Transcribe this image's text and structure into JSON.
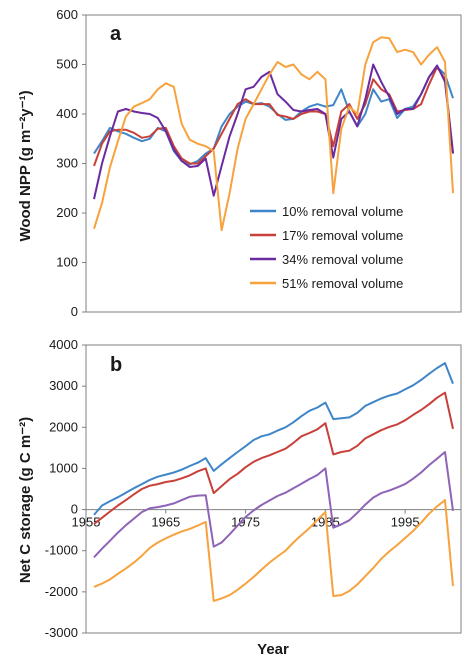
{
  "colors": {
    "s10": "#3f86c8",
    "s17": "#c8403a",
    "s34": "#6a2aa0",
    "s51": "#f7a23c",
    "s34b": "#8e63b8",
    "axis": "#808080"
  },
  "chart_data": [
    {
      "type": "line",
      "panel_label": "a",
      "ylabel": "Wood NPP (g m⁻²y⁻¹)",
      "xlim": [
        1955,
        2002
      ],
      "ylim": [
        0,
        600
      ],
      "yticks": [
        "0",
        "100",
        "200",
        "300",
        "400",
        "500",
        "600"
      ],
      "legend_position": "center-right",
      "x": [
        1956,
        1957,
        1958,
        1959,
        1960,
        1961,
        1962,
        1963,
        1964,
        1965,
        1966,
        1967,
        1968,
        1969,
        1970,
        1971,
        1972,
        1973,
        1974,
        1975,
        1976,
        1977,
        1978,
        1979,
        1980,
        1981,
        1982,
        1983,
        1984,
        1985,
        1986,
        1987,
        1988,
        1989,
        1990,
        1991,
        1992,
        1993,
        1994,
        1995,
        1996,
        1997,
        1998,
        1999,
        2000,
        2001
      ],
      "series": [
        {
          "name": "10% removal volume",
          "color_key": "s10",
          "values": [
            320,
            345,
            372,
            365,
            360,
            352,
            345,
            350,
            372,
            365,
            325,
            305,
            298,
            305,
            320,
            330,
            375,
            400,
            415,
            425,
            420,
            422,
            415,
            400,
            388,
            390,
            405,
            415,
            420,
            415,
            418,
            450,
            405,
            375,
            400,
            450,
            425,
            430,
            392,
            410,
            415,
            440,
            475,
            495,
            480,
            432
          ]
        },
        {
          "name": "17% removal volume",
          "color_key": "s17",
          "values": [
            295,
            340,
            365,
            368,
            368,
            362,
            352,
            355,
            370,
            372,
            335,
            310,
            300,
            300,
            315,
            330,
            360,
            390,
            420,
            430,
            420,
            420,
            420,
            398,
            395,
            390,
            400,
            405,
            405,
            400,
            335,
            405,
            420,
            390,
            420,
            470,
            450,
            440,
            405,
            408,
            410,
            420,
            460,
            495,
            470,
            322
          ]
        },
        {
          "name": "34% removal volume",
          "color_key": "s34",
          "values": [
            228,
            300,
            355,
            405,
            410,
            405,
            402,
            400,
            392,
            365,
            328,
            305,
            293,
            295,
            310,
            235,
            295,
            355,
            400,
            450,
            455,
            475,
            485,
            440,
            425,
            408,
            405,
            408,
            410,
            400,
            312,
            390,
            405,
            375,
            430,
            500,
            465,
            435,
            400,
            410,
            410,
            440,
            475,
            498,
            465,
            320
          ]
        },
        {
          "name": "51% removal volume",
          "color_key": "s51",
          "values": [
            168,
            220,
            292,
            345,
            395,
            415,
            422,
            430,
            450,
            462,
            455,
            380,
            348,
            340,
            335,
            325,
            165,
            240,
            330,
            390,
            420,
            450,
            480,
            505,
            495,
            500,
            480,
            470,
            485,
            470,
            240,
            370,
            415,
            400,
            500,
            545,
            555,
            553,
            525,
            530,
            525,
            500,
            520,
            535,
            505,
            240
          ]
        }
      ]
    },
    {
      "type": "line",
      "panel_label": "b",
      "xlabel": "Year",
      "ylabel": "Net C storage  (g C m⁻²)",
      "xlim": [
        1955,
        2002
      ],
      "ylim": [
        -3000,
        4000
      ],
      "xticks": [
        "1955",
        "1965",
        "1975",
        "1985",
        "1995"
      ],
      "yticks": [
        "-3000",
        "-2000",
        "-1000",
        "0",
        "1000",
        "2000",
        "3000",
        "4000"
      ],
      "x": [
        1956,
        1957,
        1958,
        1959,
        1960,
        1961,
        1962,
        1963,
        1964,
        1965,
        1966,
        1967,
        1968,
        1969,
        1970,
        1971,
        1972,
        1973,
        1974,
        1975,
        1976,
        1977,
        1978,
        1979,
        1980,
        1981,
        1982,
        1983,
        1984,
        1985,
        1986,
        1987,
        1988,
        1989,
        1990,
        1991,
        1992,
        1993,
        1994,
        1995,
        1996,
        1997,
        1998,
        1999,
        2000,
        2001
      ],
      "series": [
        {
          "color_key": "s10",
          "values": [
            -130,
            100,
            200,
            300,
            410,
            520,
            620,
            720,
            800,
            850,
            900,
            970,
            1060,
            1140,
            1250,
            940,
            1100,
            1250,
            1400,
            1540,
            1690,
            1780,
            1830,
            1920,
            2000,
            2120,
            2270,
            2400,
            2480,
            2600,
            2200,
            2220,
            2240,
            2350,
            2520,
            2610,
            2700,
            2770,
            2820,
            2920,
            3020,
            3150,
            3300,
            3440,
            3560,
            3060
          ]
        },
        {
          "color_key": "s17",
          "values": [
            -350,
            -200,
            -50,
            100,
            230,
            370,
            500,
            580,
            620,
            670,
            700,
            760,
            830,
            930,
            1000,
            400,
            570,
            740,
            870,
            1030,
            1160,
            1250,
            1320,
            1400,
            1480,
            1620,
            1780,
            1860,
            1950,
            2100,
            1340,
            1400,
            1430,
            1550,
            1730,
            1830,
            1930,
            2010,
            2070,
            2170,
            2300,
            2420,
            2560,
            2720,
            2840,
            1960
          ]
        },
        {
          "color_key": "s34b",
          "values": [
            -1160,
            -950,
            -760,
            -560,
            -380,
            -220,
            -60,
            30,
            60,
            100,
            150,
            230,
            310,
            340,
            350,
            -900,
            -800,
            -600,
            -390,
            -180,
            -20,
            110,
            220,
            330,
            410,
            520,
            630,
            740,
            840,
            1000,
            -440,
            -360,
            -260,
            -80,
            120,
            290,
            400,
            460,
            540,
            620,
            750,
            900,
            1080,
            1240,
            1400,
            -30
          ]
        },
        {
          "color_key": "s51",
          "values": [
            -1880,
            -1800,
            -1700,
            -1560,
            -1430,
            -1290,
            -1120,
            -930,
            -800,
            -700,
            -610,
            -530,
            -470,
            -390,
            -300,
            -2220,
            -2160,
            -2080,
            -1950,
            -1800,
            -1640,
            -1460,
            -1290,
            -1140,
            -1000,
            -800,
            -620,
            -450,
            -250,
            -60,
            -2100,
            -2080,
            -1980,
            -1820,
            -1620,
            -1420,
            -1200,
            -1020,
            -860,
            -690,
            -520,
            -320,
            -100,
            80,
            230,
            -1860
          ]
        }
      ]
    }
  ]
}
